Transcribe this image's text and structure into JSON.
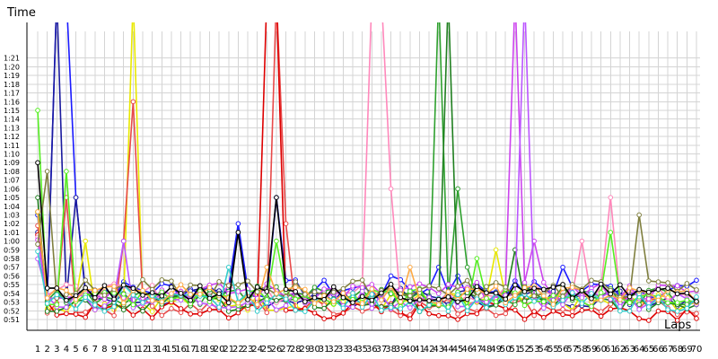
{
  "chart_data": {
    "type": "line",
    "ylabel": "Time",
    "xlabel": "Laps",
    "xlim": [
      1,
      70
    ],
    "ylim": [
      "0:51",
      "1:22"
    ],
    "grid": true,
    "laps": [
      1,
      2,
      3,
      4,
      5,
      6,
      7,
      8,
      9,
      10,
      11,
      12,
      13,
      14,
      15,
      16,
      17,
      18,
      19,
      20,
      21,
      22,
      23,
      24,
      25,
      26,
      27,
      28,
      29,
      30,
      31,
      32,
      33,
      34,
      35,
      36,
      37,
      38,
      39,
      40,
      41,
      42,
      43,
      44,
      45,
      46,
      47,
      48,
      49,
      50,
      51,
      52,
      53,
      54,
      55,
      56,
      57,
      58,
      59,
      60,
      61,
      62,
      63,
      64,
      65,
      66,
      67,
      68,
      69,
      70
    ],
    "y_ticks": [
      "0:51",
      "0:52",
      "0:53",
      "0:54",
      "0:55",
      "0:56",
      "0:57",
      "0:58",
      "0:59",
      "1:00",
      "1:01",
      "1:02",
      "1:03",
      "1:04",
      "1:05",
      "1:06",
      "1:07",
      "1:08",
      "1:09",
      "1:10",
      "1:11",
      "1:12",
      "1:13",
      "1:14",
      "1:15",
      "1:16",
      "1:17",
      "1:18",
      "1:19",
      "1:20",
      "1:21"
    ],
    "series": [
      {
        "color": "#1a1aff",
        "spikes": [
          [
            3,
            90
          ],
          [
            4,
            90
          ],
          [
            5,
            65
          ],
          [
            22,
            62
          ],
          [
            26,
            65
          ],
          [
            38,
            56
          ],
          [
            43,
            57
          ],
          [
            45,
            56
          ],
          [
            56,
            57
          ],
          [
            60,
            55
          ]
        ],
        "base": 54.5,
        "samples": 70
      },
      {
        "color": "#1a1a9e",
        "spikes": [
          [
            3,
            88
          ],
          [
            5,
            65
          ],
          [
            10,
            54
          ],
          [
            12,
            53
          ],
          [
            22,
            61
          ]
        ],
        "base": 53.5,
        "samples": 70
      },
      {
        "color": "#e8e800",
        "spikes": [
          [
            6,
            60
          ],
          [
            11,
            88
          ],
          [
            49,
            59
          ]
        ],
        "base": 53,
        "samples": 70
      },
      {
        "color": "#e84a4a",
        "spikes": [
          [
            4,
            65
          ],
          [
            10,
            60
          ],
          [
            11,
            76
          ],
          [
            26,
            90
          ],
          [
            27,
            62
          ]
        ],
        "base": 52.5,
        "samples": 70
      },
      {
        "color": "#dd0000",
        "spikes": [
          [
            25,
            90
          ],
          [
            26,
            90
          ]
        ],
        "base": 52,
        "samples": 70
      },
      {
        "color": "#ff88bb",
        "spikes": [
          [
            36,
            90
          ],
          [
            37,
            90
          ],
          [
            38,
            66
          ],
          [
            58,
            60
          ],
          [
            61,
            65
          ]
        ],
        "base": 54,
        "samples": 70
      },
      {
        "color": "#2ea02e",
        "spikes": [
          [
            43,
            90
          ],
          [
            45,
            66
          ],
          [
            46,
            57
          ]
        ],
        "base": 53.8,
        "samples": 70
      },
      {
        "color": "#1f7f1f",
        "spikes": [
          [
            44,
            90
          ],
          [
            51,
            59
          ]
        ],
        "base": 53,
        "samples": 70
      },
      {
        "color": "#cc44ee",
        "spikes": [
          [
            51,
            90
          ],
          [
            53,
            60
          ]
        ],
        "base": 54.2,
        "samples": 70
      },
      {
        "color": "#bb55ff",
        "spikes": [
          [
            52,
            90
          ],
          [
            10,
            60
          ]
        ],
        "base": 53.2,
        "samples": 70
      },
      {
        "color": "#55ee22",
        "spikes": [
          [
            1,
            75
          ],
          [
            4,
            68
          ],
          [
            26,
            60
          ],
          [
            47,
            58
          ],
          [
            61,
            61
          ]
        ],
        "base": 53.5,
        "samples": 70
      },
      {
        "color": "#7f7f3f",
        "spikes": [
          [
            2,
            68
          ],
          [
            64,
            63
          ]
        ],
        "base": 54.5,
        "samples": 70
      },
      {
        "color": "#33cccc",
        "spikes": [
          [
            10,
            55
          ],
          [
            21,
            57
          ]
        ],
        "base": 53,
        "samples": 70
      },
      {
        "color": "#ffaa44",
        "spikes": [
          [
            16,
            55
          ],
          [
            25,
            57
          ],
          [
            40,
            57
          ]
        ],
        "base": 53.8,
        "samples": 70
      },
      {
        "color": "#000000",
        "spikes": [
          [
            1,
            69
          ],
          [
            22,
            61
          ],
          [
            26,
            65
          ]
        ],
        "base": 54,
        "samples": 70
      }
    ]
  }
}
